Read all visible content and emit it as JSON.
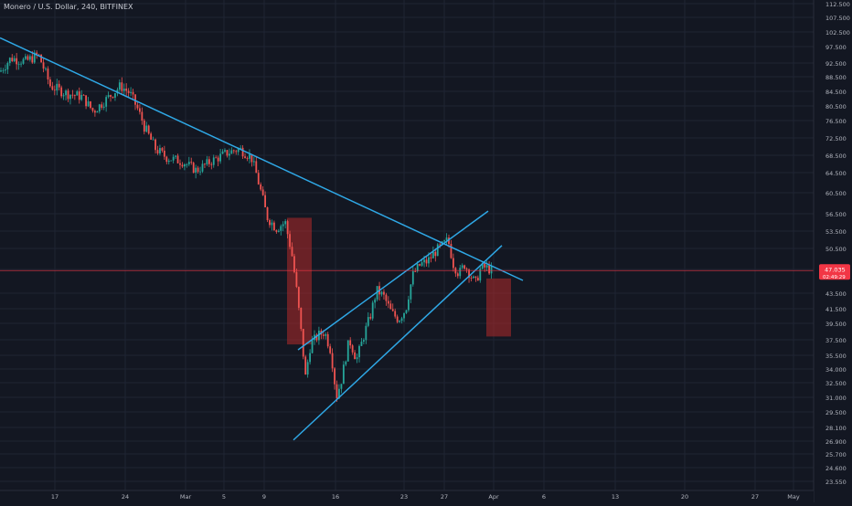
{
  "header": {
    "symbol": "Monero / U.S. Dollar",
    "interval": "240",
    "exchange": "BITFINEX"
  },
  "price_tag": {
    "price": "47.035",
    "countdown": "02:49:29",
    "color": "#f23645"
  },
  "colors": {
    "background": "#131722",
    "grid": "#1f2433",
    "bull": "#26a69a",
    "bear": "#ef5350",
    "trendline": "#2fa8e6",
    "zone": "#b22a2a",
    "axis_text": "#b2b5be"
  },
  "chart_data": {
    "type": "candlestick",
    "x_ticks": [
      "17",
      "24",
      "Mar",
      "5",
      "9",
      "16",
      "23",
      "27",
      "Apr",
      "6",
      "13",
      "20",
      "27",
      "May"
    ],
    "y_ticks": [
      "112.500",
      "107.500",
      "102.500",
      "97.500",
      "92.500",
      "88.500",
      "84.500",
      "80.500",
      "76.500",
      "72.500",
      "68.500",
      "64.500",
      "60.500",
      "56.500",
      "53.500",
      "50.500",
      "47.035",
      "43.500",
      "41.500",
      "39.500",
      "37.500",
      "35.500",
      "34.000",
      "32.500",
      "31.000",
      "29.500",
      "28.100",
      "26.900",
      "25.700",
      "24.600",
      "23.550"
    ],
    "last_price": 47.035,
    "price_path": [
      [
        0,
        90
      ],
      [
        12,
        94
      ],
      [
        28,
        93
      ],
      [
        42,
        95
      ],
      [
        55,
        86
      ],
      [
        72,
        84
      ],
      [
        90,
        83
      ],
      [
        102,
        79
      ],
      [
        115,
        82
      ],
      [
        132,
        86
      ],
      [
        142,
        84
      ],
      [
        150,
        80
      ],
      [
        158,
        75
      ],
      [
        170,
        70
      ],
      [
        182,
        68
      ],
      [
        200,
        67
      ],
      [
        215,
        65
      ],
      [
        230,
        67
      ],
      [
        248,
        69
      ],
      [
        262,
        70
      ],
      [
        275,
        68
      ],
      [
        285,
        61
      ],
      [
        292,
        56
      ],
      [
        302,
        54
      ],
      [
        312,
        55
      ],
      [
        320,
        49
      ],
      [
        328,
        40
      ],
      [
        334,
        33
      ],
      [
        340,
        37
      ],
      [
        348,
        38
      ],
      [
        355,
        38.5
      ],
      [
        362,
        36
      ],
      [
        368,
        31
      ],
      [
        374,
        33
      ],
      [
        382,
        37.5
      ],
      [
        390,
        35
      ],
      [
        398,
        38
      ],
      [
        405,
        40.5
      ],
      [
        412,
        44
      ],
      [
        420,
        43
      ],
      [
        428,
        41
      ],
      [
        436,
        40
      ],
      [
        444,
        41.5
      ],
      [
        452,
        46.5
      ],
      [
        460,
        48
      ],
      [
        468,
        48.5
      ],
      [
        476,
        50
      ],
      [
        484,
        51
      ],
      [
        490,
        52
      ],
      [
        496,
        48
      ],
      [
        502,
        46.5
      ],
      [
        508,
        48
      ],
      [
        514,
        46.5
      ],
      [
        520,
        45
      ],
      [
        526,
        47.5
      ],
      [
        532,
        47.5
      ],
      [
        538,
        47.035
      ]
    ],
    "trendlines": [
      {
        "name": "descending-resistance",
        "from": [
          0,
          100.5
        ],
        "to": [
          572,
          45.5
        ]
      },
      {
        "name": "channel-top",
        "from": [
          326,
          36.2
        ],
        "to": [
          534,
          57
        ]
      },
      {
        "name": "channel-bottom",
        "from": [
          321,
          27
        ],
        "to": [
          549,
          51
        ]
      }
    ],
    "zones": [
      {
        "name": "drop-zone-1",
        "x_from": 314,
        "x_to": 341,
        "y_from": 55.8,
        "y_to": 36.9
      },
      {
        "name": "projected-drop-zone",
        "x_from": 532,
        "x_to": 559,
        "y_from": 45.8,
        "y_to": 37.9
      }
    ],
    "grid": true
  }
}
